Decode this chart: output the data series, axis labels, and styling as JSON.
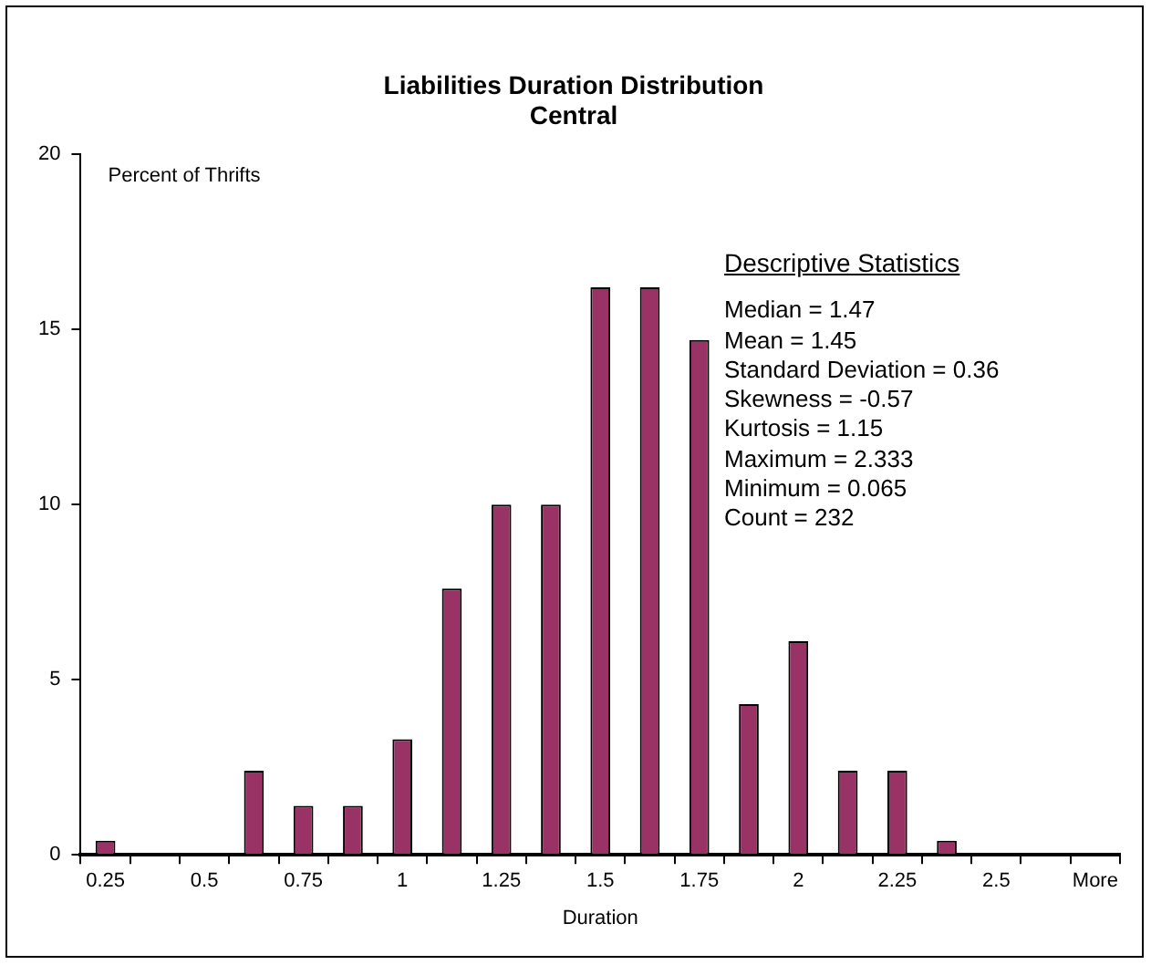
{
  "chart_data": {
    "type": "bar",
    "title": "Liabilities Duration Distribution",
    "subtitle": "Central",
    "xlabel": "Duration",
    "ylabel": "Percent of Thrifts",
    "categories": [
      "0.25",
      null,
      "0.5",
      null,
      "0.75",
      null,
      "1",
      null,
      "1.25",
      null,
      "1.5",
      null,
      "1.75",
      null,
      "2",
      null,
      "2.25",
      null,
      "2.5",
      null,
      "More"
    ],
    "values": [
      0.4,
      0,
      0,
      2.4,
      1.4,
      1.4,
      3.3,
      7.6,
      10,
      10,
      16.2,
      16.2,
      14.7,
      4.3,
      6.1,
      2.4,
      2.4,
      0.4,
      0,
      0,
      0
    ],
    "color": "#993366",
    "ylim": [
      0,
      20
    ],
    "yticks": [
      0,
      5,
      10,
      15,
      20
    ],
    "grid": false,
    "legend": false,
    "annotations": [
      "Descriptive Statistics",
      "Median = 1.47",
      "Mean = 1.45",
      "Standard Deviation = 0.36",
      "Skewness = -0.57",
      "Kurtosis = 1.15",
      "Maximum = 2.333",
      "Minimum = 0.065",
      "Count = 232"
    ]
  }
}
